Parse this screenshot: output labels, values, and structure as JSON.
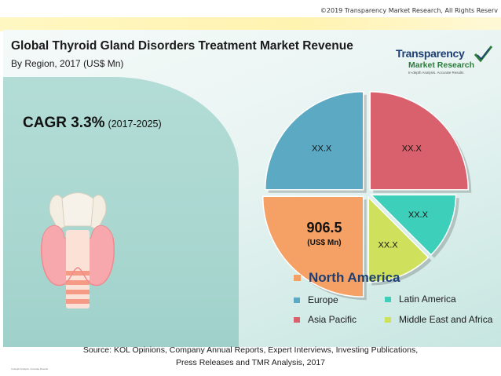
{
  "copyright": "©2019 Transparency Market Research, All Rights Reserv",
  "logo": {
    "line1": "Transparency",
    "line2": "Market Research",
    "tagline": "In-depth Analysis. Accurate Results"
  },
  "cagr": {
    "label": "CAGR 3.3%",
    "period": "(2017-2025)"
  },
  "chart_data": {
    "type": "pie",
    "title": "Global Thyroid Gland Disorders Treatment Market Revenue",
    "subtitle": "By Region, 2017 (US$ Mn)",
    "slices": [
      {
        "name": "Europe",
        "label": "XX.X",
        "color": "#5ca9c4",
        "pct": 25
      },
      {
        "name": "Asia Pacific",
        "label": "XX.X",
        "color": "#d9606d",
        "pct": 25
      },
      {
        "name": "Latin America",
        "label": "XX.X",
        "color": "#3ecfba",
        "pct": 12.5
      },
      {
        "name": "Middle East and Africa",
        "label": "XX.X",
        "color": "#cfe05d",
        "pct": 12.5
      },
      {
        "name": "North America",
        "label": "906.5",
        "unit": "(US$ Mn)",
        "color": "#f5a064",
        "pct": 25
      }
    ],
    "legend": [
      {
        "name": "North America",
        "color": "#f5a064"
      },
      {
        "name": "Europe",
        "color": "#5ca9c4"
      },
      {
        "name": "Latin America",
        "color": "#3ecfba"
      },
      {
        "name": "Asia Pacific",
        "color": "#d9606d"
      },
      {
        "name": "Middle East and Africa",
        "color": "#cfe05d"
      }
    ]
  },
  "source": {
    "line1": "Source: KOL Opinions, Company Annual Reports, Expert Interviews, Investing Publications,",
    "line2": "Press Releases and TMR Analysis, 2017"
  },
  "tiny_text": "In-depth Analysis. Accurate Results"
}
